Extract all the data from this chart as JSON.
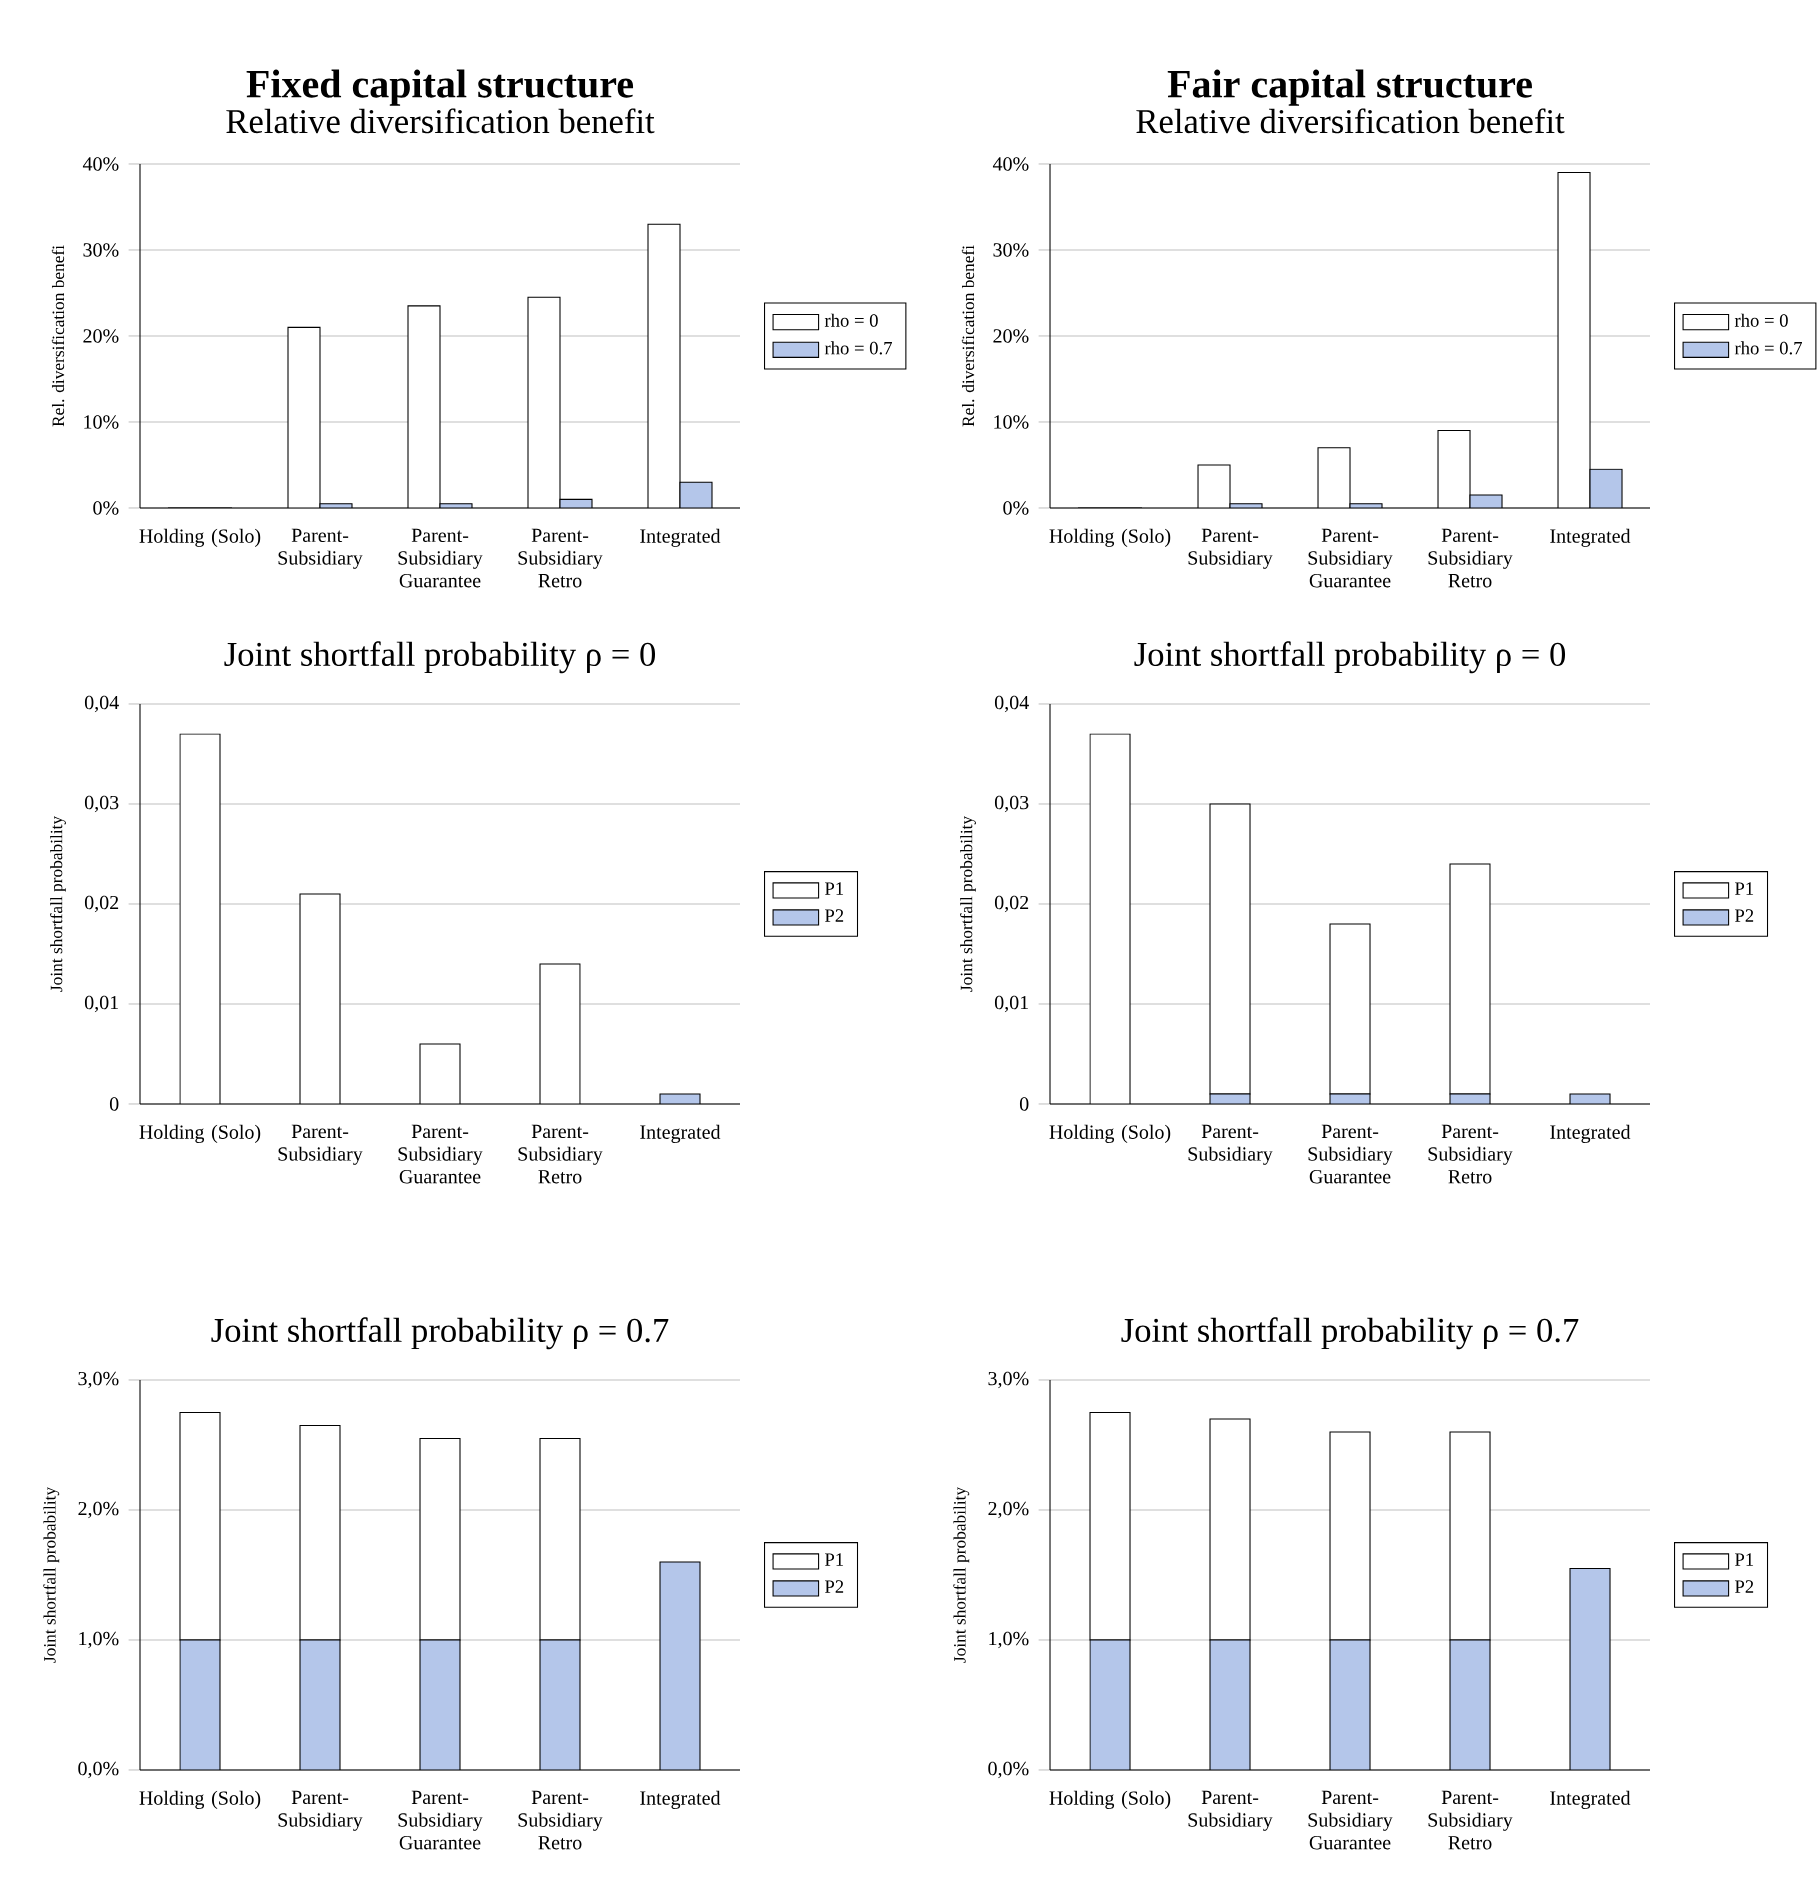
{
  "chart_data": [
    {
      "type": "bar",
      "title": "Fixed capital structure",
      "subtitle": "Relative diversification benefit",
      "ylabel": "Rel. diversification benefi",
      "categories": [
        "Holding (Solo)",
        "Parent-Subsidiary",
        "Parent-Subsidiary Guarantee",
        "Parent-Subsidiary Retro",
        "Integrated"
      ],
      "series": [
        {
          "name": "rho = 0",
          "color": "#ffffff",
          "values": [
            0,
            21,
            23.5,
            24.5,
            33
          ]
        },
        {
          "name": "rho = 0.7",
          "color": "#b4c6ea",
          "values": [
            0,
            0.5,
            0.5,
            1,
            3
          ]
        }
      ],
      "ylim": [
        0,
        40
      ],
      "yticks": [
        {
          "value": 0,
          "label": "0%"
        },
        {
          "value": 10,
          "label": "10%"
        },
        {
          "value": 20,
          "label": "20%"
        },
        {
          "value": 30,
          "label": "30%"
        },
        {
          "value": 40,
          "label": "40%"
        }
      ],
      "grid": "y",
      "legend": "right"
    },
    {
      "type": "bar",
      "title": "Fair capital structure",
      "subtitle": "Relative diversification benefit",
      "ylabel": "Rel. diversification benefi",
      "categories": [
        "Holding (Solo)",
        "Parent-Subsidiary",
        "Parent-Subsidiary Guarantee",
        "Parent-Subsidiary Retro",
        "Integrated"
      ],
      "series": [
        {
          "name": "rho = 0",
          "color": "#ffffff",
          "values": [
            0,
            5,
            7,
            9,
            39
          ]
        },
        {
          "name": "rho = 0.7",
          "color": "#b4c6ea",
          "values": [
            0,
            0.5,
            0.5,
            1.5,
            4.5
          ]
        }
      ],
      "ylim": [
        0,
        40
      ],
      "yticks": [
        {
          "value": 0,
          "label": "0%"
        },
        {
          "value": 10,
          "label": "10%"
        },
        {
          "value": 20,
          "label": "20%"
        },
        {
          "value": 30,
          "label": "30%"
        },
        {
          "value": 40,
          "label": "40%"
        }
      ],
      "grid": "y",
      "legend": "right"
    },
    {
      "type": "bar",
      "stacked": true,
      "title": "Joint shortfall probability ρ = 0",
      "ylabel": "Joint shortfall probability",
      "categories": [
        "Holding (Solo)",
        "Parent-Subsidiary",
        "Parent-Subsidiary Guarantee",
        "Parent-Subsidiary Retro",
        "Integrated"
      ],
      "series": [
        {
          "name": "P2",
          "color": "#b4c6ea",
          "values": [
            0,
            0,
            0,
            0,
            0.001
          ]
        },
        {
          "name": "P1",
          "color": "#ffffff",
          "values": [
            0.037,
            0.021,
            0.006,
            0.014,
            0
          ]
        }
      ],
      "ylim": [
        0,
        0.04
      ],
      "yticks": [
        0,
        {
          "value": 0.01,
          "label": "0,01"
        },
        {
          "value": 0.02,
          "label": "0,02"
        },
        {
          "value": 0.03,
          "label": "0,03"
        },
        {
          "value": 0.04,
          "label": "0,04"
        }
      ],
      "grid": "y",
      "legend": "right"
    },
    {
      "type": "bar",
      "stacked": true,
      "title": "Joint shortfall probability ρ = 0",
      "ylabel": "Joint shortfall probability",
      "categories": [
        "Holding (Solo)",
        "Parent-Subsidiary",
        "Parent-Subsidiary Guarantee",
        "Parent-Subsidiary Retro",
        "Integrated"
      ],
      "series": [
        {
          "name": "P2",
          "color": "#b4c6ea",
          "values": [
            0,
            0.001,
            0.001,
            0.001,
            0.001
          ]
        },
        {
          "name": "P1",
          "color": "#ffffff",
          "values": [
            0.037,
            0.029,
            0.017,
            0.023,
            0
          ]
        }
      ],
      "ylim": [
        0,
        0.04
      ],
      "yticks": [
        0,
        {
          "value": 0.01,
          "label": "0,01"
        },
        {
          "value": 0.02,
          "label": "0,02"
        },
        {
          "value": 0.03,
          "label": "0,03"
        },
        {
          "value": 0.04,
          "label": "0,04"
        }
      ],
      "grid": "y",
      "legend": "right"
    },
    {
      "type": "bar",
      "stacked": true,
      "title": "Joint shortfall probability ρ = 0.7",
      "ylabel": "Joint shortfall probability",
      "categories": [
        "Holding (Solo)",
        "Parent-Subsidiary",
        "Parent-Subsidiary Guarantee",
        "Parent-Subsidiary Retro",
        "Integrated"
      ],
      "series": [
        {
          "name": "P2",
          "color": "#b4c6ea",
          "values": [
            1.0,
            1.0,
            1.0,
            1.0,
            1.6
          ]
        },
        {
          "name": "P1",
          "color": "#ffffff",
          "values": [
            1.75,
            1.65,
            1.55,
            1.55,
            0
          ]
        }
      ],
      "ylim": [
        0,
        3
      ],
      "yticks": [
        {
          "value": 0,
          "label": "0,0%"
        },
        {
          "value": 1,
          "label": "1,0%"
        },
        {
          "value": 2,
          "label": "2,0%"
        },
        {
          "value": 3,
          "label": "3,0%"
        }
      ],
      "grid": "y",
      "legend": "right"
    },
    {
      "type": "bar",
      "stacked": true,
      "title": "Joint shortfall probability ρ = 0.7",
      "ylabel": "Joint shortfall probability",
      "categories": [
        "Holding (Solo)",
        "Parent-Subsidiary",
        "Parent-Subsidiary Guarantee",
        "Parent-Subsidiary Retro",
        "Integrated"
      ],
      "series": [
        {
          "name": "P2",
          "color": "#b4c6ea",
          "values": [
            1.0,
            1.0,
            1.0,
            1.0,
            1.55
          ]
        },
        {
          "name": "P1",
          "color": "#ffffff",
          "values": [
            1.75,
            1.7,
            1.6,
            1.6,
            0
          ]
        }
      ],
      "ylim": [
        0,
        3
      ],
      "yticks": [
        {
          "value": 0,
          "label": "0,0%"
        },
        {
          "value": 1,
          "label": "1,0%"
        },
        {
          "value": 2,
          "label": "2,0%"
        },
        {
          "value": 3,
          "label": "3,0%"
        }
      ],
      "grid": "y",
      "legend": "right"
    }
  ]
}
